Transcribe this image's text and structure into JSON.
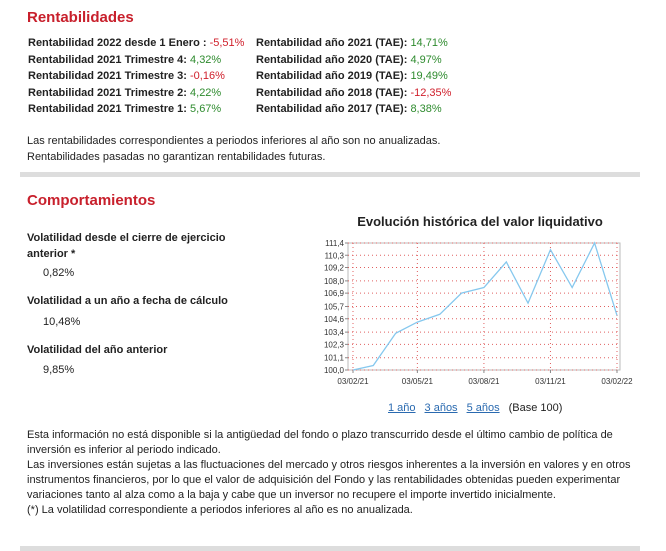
{
  "rentabilidades": {
    "title": "Rentabilidades",
    "left": [
      {
        "label": "Rentabilidad 2022 desde 1 Enero :",
        "value": "-5,51%"
      },
      {
        "label": "Rentabilidad 2021 Trimestre 4:",
        "value": "4,32%"
      },
      {
        "label": "Rentabilidad 2021 Trimestre 3:",
        "value": "-0,16%"
      },
      {
        "label": "Rentabilidad 2021 Trimestre 2:",
        "value": "4,22%"
      },
      {
        "label": "Rentabilidad 2021 Trimestre 1:",
        "value": "5,67%"
      }
    ],
    "right": [
      {
        "label": "Rentabilidad año 2021 (TAE):",
        "value": "14,71%"
      },
      {
        "label": "Rentabilidad año 2020 (TAE):",
        "value": "4,97%"
      },
      {
        "label": "Rentabilidad año 2019 (TAE):",
        "value": "19,49%"
      },
      {
        "label": "Rentabilidad año 2018 (TAE):",
        "value": "-12,35%"
      },
      {
        "label": "Rentabilidad año 2017 (TAE):",
        "value": "8,38%"
      }
    ],
    "notes": [
      "Las rentabilidades correspondientes a periodos inferiores al año son no anualizadas.",
      "Rentabilidades pasadas no garantizan rentabilidades futuras."
    ]
  },
  "comportamientos": {
    "title": "Comportamientos",
    "items": [
      {
        "label": "Volatilidad desde el cierre de ejercicio anterior *",
        "value": "0,82%"
      },
      {
        "label": "Volatilidad a un año a fecha de cálculo",
        "value": "10,48%"
      },
      {
        "label": "Volatilidad del año anterior",
        "value": "9,85%"
      }
    ],
    "links": [
      "1 año",
      "3 años",
      "5 años"
    ],
    "base": "(Base 100)",
    "footer": [
      "Esta información no está disponible si la antigüedad del fondo o plazo transcurrido desde el último cambio de política de inversión es inferior al periodo indicado.",
      "Las inversiones están sujetas a las fluctuaciones del mercado y otros riesgos inherentes a la inversión en valores y en otros instrumentos financieros, por lo que el valor de adquisición del Fondo y las rentabilidades obtenidas pueden experimentar variaciones tanto al alza como a la baja y cabe que un inversor no recupere el importe invertido inicialmente.",
      "(*) La volatilidad correspondiente a periodos inferiores al año es no anualizada."
    ]
  },
  "chart_data": {
    "type": "line",
    "title": "Evolución histórica del valor liquidativo",
    "x": [
      "03/02/21",
      "03/03/21",
      "03/04/21",
      "03/05/21",
      "03/06/21",
      "03/07/21",
      "03/08/21",
      "03/09/21",
      "03/10/21",
      "03/11/21",
      "03/12/21",
      "03/01/22",
      "03/02/22"
    ],
    "values": [
      100.0,
      100.4,
      103.3,
      104.3,
      105.0,
      106.9,
      107.4,
      109.7,
      106.0,
      110.8,
      107.4,
      111.4,
      104.9
    ],
    "color": "#86c8ee",
    "xlim": [
      "03/02/21",
      "03/02/22"
    ],
    "xticks": [
      "03/02/21",
      "03/05/21",
      "03/08/21",
      "03/11/21",
      "03/02/22"
    ],
    "ylim": [
      100.0,
      111.4
    ],
    "yticks": [
      {
        "value": 100.0,
        "label": "100,0"
      },
      {
        "value": 101.1,
        "label": "101,1"
      },
      {
        "value": 102.3,
        "label": "102,3"
      },
      {
        "value": 103.4,
        "label": "103,4"
      },
      {
        "value": 104.6,
        "label": "104,6"
      },
      {
        "value": 105.7,
        "label": "105,7"
      },
      {
        "value": 106.9,
        "label": "106,9"
      },
      {
        "value": 108.0,
        "label": "108,0"
      },
      {
        "value": 109.2,
        "label": "109,2"
      },
      {
        "value": 110.3,
        "label": "110,3"
      },
      {
        "value": 111.4,
        "label": "111,4"
      }
    ],
    "grid": true
  }
}
